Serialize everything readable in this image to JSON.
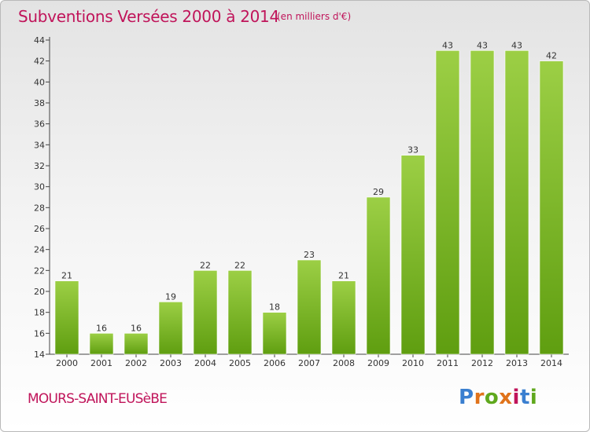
{
  "header": {
    "title": "Subventions Versées 2000 à 2014",
    "subtitle": "(en milliers d'€)"
  },
  "footer": {
    "commune": "MOURS-SAINT-EUSèBE",
    "logo_text": "Proxiti",
    "logo_colors": [
      "#3a7fd0",
      "#e0731b",
      "#5fa81d",
      "#e0731b",
      "#c0145a",
      "#3a7fd0",
      "#5fa81d"
    ]
  },
  "colors": {
    "bar_top": "#9ccf45",
    "bar_bottom": "#5f9e10",
    "text": "#333333",
    "accent": "#c0145a"
  },
  "chart_data": {
    "type": "bar",
    "title": "Subventions Versées 2000 à 2014",
    "subtitle": "(en milliers d'€)",
    "xlabel": "",
    "ylabel": "",
    "categories": [
      "2000",
      "2001",
      "2002",
      "2003",
      "2004",
      "2005",
      "2006",
      "2007",
      "2008",
      "2009",
      "2010",
      "2011",
      "2012",
      "2013",
      "2014"
    ],
    "values": [
      21,
      16,
      16,
      19,
      22,
      22,
      18,
      23,
      21,
      29,
      33,
      43,
      43,
      43,
      42
    ],
    "ylim": [
      14,
      44
    ],
    "yticks": [
      14,
      16,
      18,
      20,
      22,
      24,
      26,
      28,
      30,
      32,
      34,
      36,
      38,
      40,
      42,
      44
    ],
    "grid": false,
    "data_labels": true
  }
}
